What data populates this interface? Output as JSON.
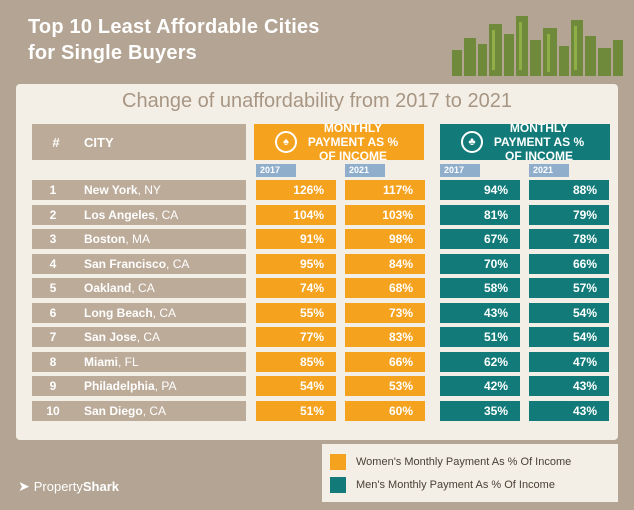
{
  "title": {
    "line1": "Top 10 Least Affordable Cities",
    "line2": "for Single Buyers"
  },
  "subtitle": "Change of unaffordability from 2017 to 2021",
  "headers": {
    "rank": "#",
    "city": "CITY",
    "women": "MONTHLY PAYMENT AS % OF INCOME",
    "men": "MONTHLY PAYMENT AS % OF INCOME",
    "year_a": "2017",
    "year_b": "2021"
  },
  "colors": {
    "women": "#f5a21e",
    "men": "#127b7a",
    "label": "#bcab99",
    "background": "#b3a493"
  },
  "rows": [
    {
      "rank": "1",
      "city": "New York",
      "state": ", NY",
      "w2017": "126%",
      "w2021": "117%",
      "m2017": "94%",
      "m2021": "88%"
    },
    {
      "rank": "2",
      "city": "Los Angeles",
      "state": ", CA",
      "w2017": "104%",
      "w2021": "103%",
      "m2017": "81%",
      "m2021": "79%"
    },
    {
      "rank": "3",
      "city": "Boston",
      "state": ", MA",
      "w2017": "91%",
      "w2021": "98%",
      "m2017": "67%",
      "m2021": "78%"
    },
    {
      "rank": "4",
      "city": "San Francisco",
      "state": ", CA",
      "w2017": "95%",
      "w2021": "84%",
      "m2017": "70%",
      "m2021": "66%"
    },
    {
      "rank": "5",
      "city": "Oakland",
      "state": ", CA",
      "w2017": "74%",
      "w2021": "68%",
      "m2017": "58%",
      "m2021": "57%"
    },
    {
      "rank": "6",
      "city": "Long Beach",
      "state": ", CA",
      "w2017": "55%",
      "w2021": "73%",
      "m2017": "43%",
      "m2021": "54%"
    },
    {
      "rank": "7",
      "city": "San Jose",
      "state": ", CA",
      "w2017": "77%",
      "w2021": "83%",
      "m2017": "51%",
      "m2021": "54%"
    },
    {
      "rank": "8",
      "city": "Miami",
      "state": ", FL",
      "w2017": "85%",
      "w2021": "66%",
      "m2017": "62%",
      "m2021": "47%"
    },
    {
      "rank": "9",
      "city": "Philadelphia",
      "state": ", PA",
      "w2017": "54%",
      "w2021": "53%",
      "m2017": "42%",
      "m2021": "43%"
    },
    {
      "rank": "10",
      "city": "San Diego",
      "state": ", CA",
      "w2017": "51%",
      "w2021": "60%",
      "m2017": "35%",
      "m2021": "43%"
    }
  ],
  "legend": {
    "women": "Women's Monthly Payment As % Of Income",
    "men": "Men's Monthly Payment As % Of Income"
  },
  "brand": {
    "a": "Property",
    "b": "Shark"
  }
}
